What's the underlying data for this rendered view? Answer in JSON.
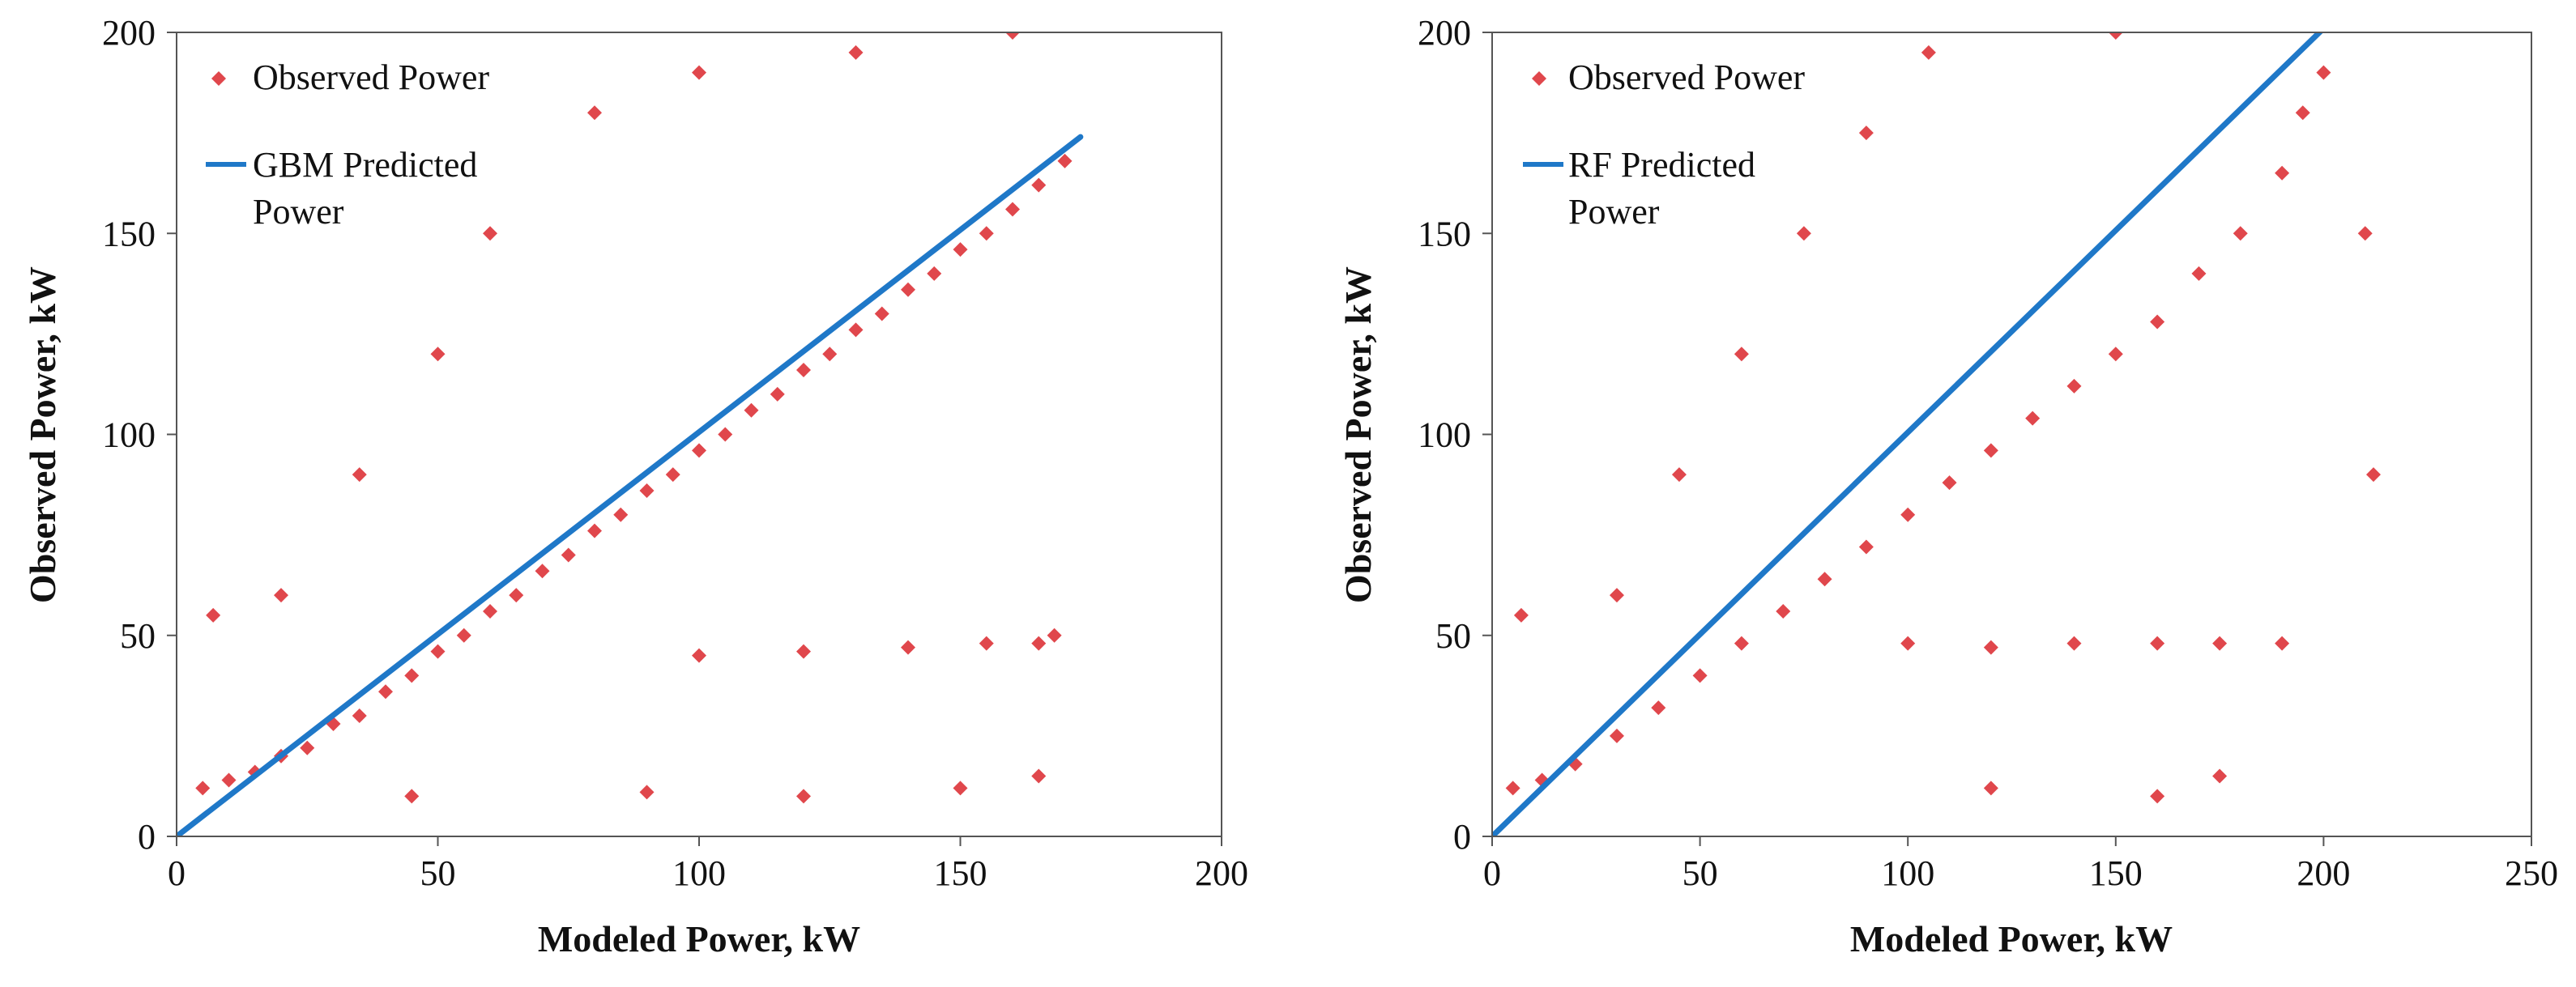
{
  "chart_data": [
    {
      "type": "scatter",
      "title": "",
      "xlabel": "Modeled Power, kW",
      "ylabel": "Observed Power,  kW",
      "xlim": [
        0,
        200
      ],
      "ylim": [
        0,
        200
      ],
      "xticks": [
        0,
        50,
        100,
        150,
        200
      ],
      "yticks": [
        0,
        50,
        100,
        150,
        200
      ],
      "xtick_labels": [
        "0",
        "50",
        "100",
        "150",
        "200"
      ],
      "ytick_labels": [
        "0",
        "50",
        "100",
        "150",
        "200"
      ],
      "grid": false,
      "legend_position": "top-left",
      "series": [
        {
          "name": "Observed Power",
          "kind": "scatter",
          "color": "#e0474c",
          "marker": "diamond",
          "description_values": {
            "x_range": [
              2,
              173
            ],
            "y_range": [
              10,
              200
            ],
            "points": [
              [
                5,
                12
              ],
              [
                10,
                14
              ],
              [
                15,
                16
              ],
              [
                20,
                20
              ],
              [
                25,
                22
              ],
              [
                30,
                28
              ],
              [
                35,
                30
              ],
              [
                40,
                36
              ],
              [
                45,
                40
              ],
              [
                50,
                46
              ],
              [
                55,
                50
              ],
              [
                60,
                56
              ],
              [
                65,
                60
              ],
              [
                70,
                66
              ],
              [
                75,
                70
              ],
              [
                80,
                76
              ],
              [
                85,
                80
              ],
              [
                90,
                86
              ],
              [
                95,
                90
              ],
              [
                100,
                96
              ],
              [
                105,
                100
              ],
              [
                110,
                106
              ],
              [
                115,
                110
              ],
              [
                120,
                116
              ],
              [
                125,
                120
              ],
              [
                130,
                126
              ],
              [
                135,
                130
              ],
              [
                140,
                136
              ],
              [
                145,
                140
              ],
              [
                150,
                146
              ],
              [
                155,
                150
              ],
              [
                160,
                156
              ],
              [
                165,
                162
              ],
              [
                170,
                168
              ],
              [
                168,
                50
              ],
              [
                165,
                48
              ],
              [
                155,
                48
              ],
              [
                140,
                47
              ],
              [
                120,
                46
              ],
              [
                100,
                45
              ],
              [
                20,
                60
              ],
              [
                35,
                90
              ],
              [
                50,
                120
              ],
              [
                60,
                150
              ],
              [
                80,
                180
              ],
              [
                100,
                190
              ],
              [
                130,
                195
              ],
              [
                160,
                200
              ],
              [
                165,
                15
              ],
              [
                150,
                12
              ],
              [
                120,
                10
              ],
              [
                90,
                11
              ],
              [
                45,
                10
              ],
              [
                7,
                55
              ]
            ]
          }
        },
        {
          "name": "GBM Predicted Power",
          "legend_lines": [
            "GBM Predicted",
            "Power"
          ],
          "kind": "line",
          "color": "#1f78c8",
          "x": [
            0,
            173
          ],
          "y": [
            0,
            174
          ]
        }
      ]
    },
    {
      "type": "scatter",
      "title": "",
      "xlabel": "Modeled Power, kW",
      "ylabel": "Observed Power,  kW",
      "xlim": [
        0,
        250
      ],
      "ylim": [
        0,
        200
      ],
      "xticks": [
        0,
        50,
        100,
        150,
        200,
        250
      ],
      "yticks": [
        0,
        50,
        100,
        150,
        200
      ],
      "xtick_labels": [
        "0",
        "50",
        "100",
        "150",
        "200",
        "250"
      ],
      "ytick_labels": [
        "0",
        "50",
        "100",
        "150",
        "200"
      ],
      "grid": false,
      "legend_position": "top-left",
      "series": [
        {
          "name": "Observed Power",
          "kind": "scatter",
          "color": "#e0474c",
          "marker": "diamond",
          "description_values": {
            "x_range": [
              2,
              212
            ],
            "y_range": [
              10,
              200
            ],
            "points": [
              [
                5,
                12
              ],
              [
                12,
                14
              ],
              [
                20,
                18
              ],
              [
                30,
                25
              ],
              [
                40,
                32
              ],
              [
                50,
                40
              ],
              [
                60,
                48
              ],
              [
                70,
                56
              ],
              [
                80,
                64
              ],
              [
                90,
                72
              ],
              [
                100,
                80
              ],
              [
                110,
                88
              ],
              [
                120,
                96
              ],
              [
                130,
                104
              ],
              [
                140,
                112
              ],
              [
                150,
                120
              ],
              [
                160,
                128
              ],
              [
                170,
                140
              ],
              [
                180,
                150
              ],
              [
                190,
                165
              ],
              [
                195,
                180
              ],
              [
                200,
                190
              ],
              [
                210,
                150
              ],
              [
                212,
                90
              ],
              [
                190,
                48
              ],
              [
                175,
                48
              ],
              [
                160,
                48
              ],
              [
                140,
                48
              ],
              [
                120,
                47
              ],
              [
                100,
                48
              ],
              [
                30,
                60
              ],
              [
                45,
                90
              ],
              [
                60,
                120
              ],
              [
                75,
                150
              ],
              [
                90,
                175
              ],
              [
                105,
                195
              ],
              [
                150,
                200
              ],
              [
                175,
                15
              ],
              [
                160,
                10
              ],
              [
                120,
                12
              ],
              [
                7,
                55
              ]
            ]
          }
        },
        {
          "name": "RF Predicted Power",
          "legend_lines": [
            "RF Predicted",
            "Power"
          ],
          "kind": "line",
          "color": "#1f78c8",
          "x": [
            0,
            200
          ],
          "y": [
            0,
            201
          ]
        }
      ]
    }
  ]
}
